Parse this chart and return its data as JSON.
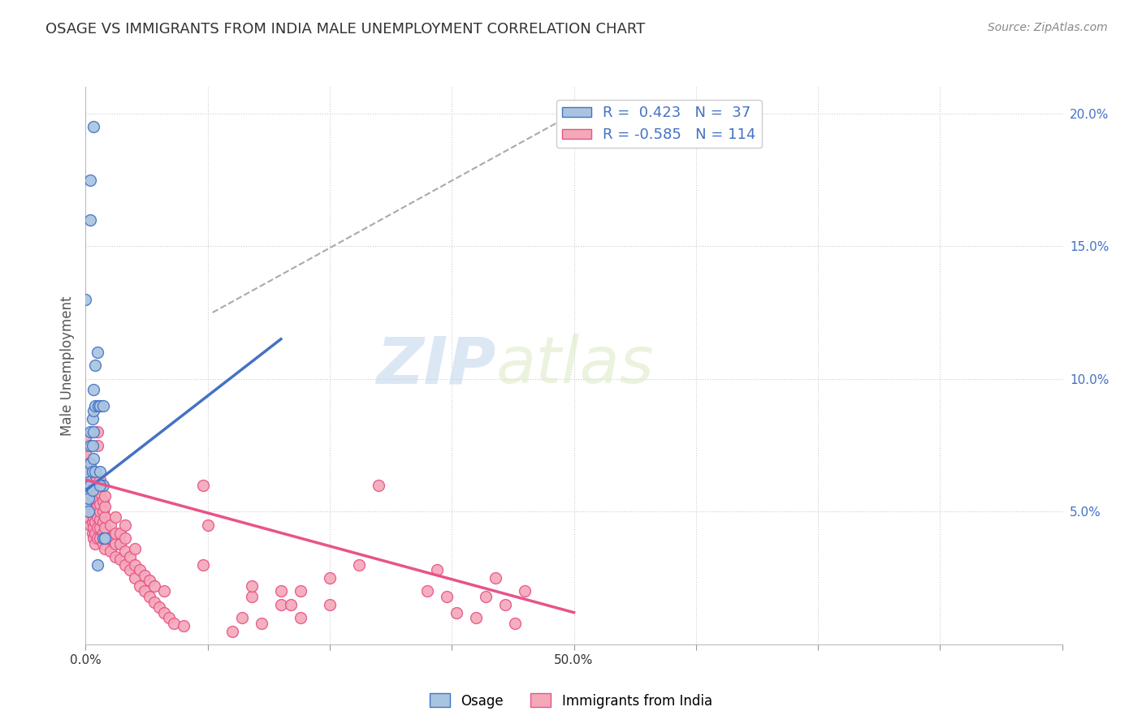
{
  "title": "OSAGE VS IMMIGRANTS FROM INDIA MALE UNEMPLOYMENT CORRELATION CHART",
  "source": "Source: ZipAtlas.com",
  "ylabel": "Male Unemployment",
  "right_yticks": [
    "20.0%",
    "15.0%",
    "10.0%",
    "5.0%"
  ],
  "right_ytick_vals": [
    0.2,
    0.15,
    0.1,
    0.05
  ],
  "osage_color": "#a8c4e0",
  "india_color": "#f4a8b8",
  "osage_line_color": "#4472c4",
  "india_line_color": "#e8538a",
  "trendline_dashed_color": "#aaaaaa",
  "background_color": "#ffffff",
  "watermark_zip": "ZIP",
  "watermark_atlas": "atlas",
  "xlim": [
    0.0,
    0.5
  ],
  "ylim": [
    0.0,
    0.21
  ],
  "xtick_vals": [
    0.0,
    0.0625,
    0.125,
    0.1875,
    0.25,
    0.3125,
    0.375,
    0.4375,
    0.5
  ],
  "xtick_labels_shown": {
    "0.0": "0.0%",
    "0.5": "50.0%"
  },
  "osage_scatter": [
    [
      0.0,
      0.053
    ],
    [
      0.0,
      0.057
    ],
    [
      0.0,
      0.06
    ],
    [
      0.0,
      0.062
    ],
    [
      0.0,
      0.065
    ],
    [
      0.003,
      0.05
    ],
    [
      0.003,
      0.055
    ],
    [
      0.003,
      0.06
    ],
    [
      0.005,
      0.06
    ],
    [
      0.005,
      0.068
    ],
    [
      0.005,
      0.075
    ],
    [
      0.005,
      0.08
    ],
    [
      0.007,
      0.058
    ],
    [
      0.007,
      0.065
    ],
    [
      0.007,
      0.075
    ],
    [
      0.007,
      0.085
    ],
    [
      0.008,
      0.07
    ],
    [
      0.008,
      0.08
    ],
    [
      0.008,
      0.088
    ],
    [
      0.008,
      0.096
    ],
    [
      0.01,
      0.065
    ],
    [
      0.01,
      0.09
    ],
    [
      0.01,
      0.105
    ],
    [
      0.012,
      0.03
    ],
    [
      0.013,
      0.09
    ],
    [
      0.015,
      0.065
    ],
    [
      0.015,
      0.09
    ],
    [
      0.018,
      0.06
    ],
    [
      0.018,
      0.09
    ],
    [
      0.0,
      0.13
    ],
    [
      0.005,
      0.16
    ],
    [
      0.008,
      0.195
    ],
    [
      0.005,
      0.175
    ],
    [
      0.012,
      0.11
    ],
    [
      0.015,
      0.06
    ],
    [
      0.018,
      0.04
    ],
    [
      0.02,
      0.04
    ]
  ],
  "india_scatter": [
    [
      0.0,
      0.05
    ],
    [
      0.0,
      0.055
    ],
    [
      0.0,
      0.06
    ],
    [
      0.0,
      0.062
    ],
    [
      0.0,
      0.065
    ],
    [
      0.0,
      0.068
    ],
    [
      0.0,
      0.07
    ],
    [
      0.0,
      0.072
    ],
    [
      0.0,
      0.075
    ],
    [
      0.0,
      0.078
    ],
    [
      0.003,
      0.048
    ],
    [
      0.003,
      0.052
    ],
    [
      0.003,
      0.055
    ],
    [
      0.003,
      0.058
    ],
    [
      0.003,
      0.06
    ],
    [
      0.003,
      0.062
    ],
    [
      0.003,
      0.065
    ],
    [
      0.003,
      0.068
    ],
    [
      0.005,
      0.045
    ],
    [
      0.005,
      0.05
    ],
    [
      0.005,
      0.053
    ],
    [
      0.005,
      0.055
    ],
    [
      0.005,
      0.058
    ],
    [
      0.005,
      0.06
    ],
    [
      0.005,
      0.063
    ],
    [
      0.007,
      0.042
    ],
    [
      0.007,
      0.046
    ],
    [
      0.007,
      0.05
    ],
    [
      0.007,
      0.053
    ],
    [
      0.007,
      0.056
    ],
    [
      0.007,
      0.06
    ],
    [
      0.008,
      0.04
    ],
    [
      0.008,
      0.044
    ],
    [
      0.008,
      0.048
    ],
    [
      0.008,
      0.051
    ],
    [
      0.008,
      0.055
    ],
    [
      0.008,
      0.058
    ],
    [
      0.008,
      0.062
    ],
    [
      0.01,
      0.038
    ],
    [
      0.01,
      0.042
    ],
    [
      0.01,
      0.046
    ],
    [
      0.01,
      0.05
    ],
    [
      0.01,
      0.053
    ],
    [
      0.01,
      0.057
    ],
    [
      0.012,
      0.04
    ],
    [
      0.012,
      0.044
    ],
    [
      0.012,
      0.048
    ],
    [
      0.012,
      0.052
    ],
    [
      0.012,
      0.055
    ],
    [
      0.012,
      0.06
    ],
    [
      0.012,
      0.075
    ],
    [
      0.012,
      0.08
    ],
    [
      0.015,
      0.04
    ],
    [
      0.015,
      0.044
    ],
    [
      0.015,
      0.047
    ],
    [
      0.015,
      0.05
    ],
    [
      0.015,
      0.053
    ],
    [
      0.015,
      0.057
    ],
    [
      0.015,
      0.062
    ],
    [
      0.018,
      0.038
    ],
    [
      0.018,
      0.042
    ],
    [
      0.018,
      0.046
    ],
    [
      0.018,
      0.05
    ],
    [
      0.018,
      0.054
    ],
    [
      0.02,
      0.036
    ],
    [
      0.02,
      0.04
    ],
    [
      0.02,
      0.044
    ],
    [
      0.02,
      0.048
    ],
    [
      0.02,
      0.052
    ],
    [
      0.02,
      0.056
    ],
    [
      0.025,
      0.035
    ],
    [
      0.025,
      0.04
    ],
    [
      0.025,
      0.045
    ],
    [
      0.03,
      0.033
    ],
    [
      0.03,
      0.038
    ],
    [
      0.03,
      0.042
    ],
    [
      0.03,
      0.048
    ],
    [
      0.035,
      0.032
    ],
    [
      0.035,
      0.038
    ],
    [
      0.035,
      0.042
    ],
    [
      0.04,
      0.03
    ],
    [
      0.04,
      0.035
    ],
    [
      0.04,
      0.04
    ],
    [
      0.04,
      0.045
    ],
    [
      0.045,
      0.028
    ],
    [
      0.045,
      0.033
    ],
    [
      0.05,
      0.025
    ],
    [
      0.05,
      0.03
    ],
    [
      0.05,
      0.036
    ],
    [
      0.055,
      0.022
    ],
    [
      0.055,
      0.028
    ],
    [
      0.06,
      0.02
    ],
    [
      0.06,
      0.026
    ],
    [
      0.065,
      0.018
    ],
    [
      0.065,
      0.024
    ],
    [
      0.07,
      0.016
    ],
    [
      0.07,
      0.022
    ],
    [
      0.075,
      0.014
    ],
    [
      0.08,
      0.012
    ],
    [
      0.08,
      0.02
    ],
    [
      0.085,
      0.01
    ],
    [
      0.09,
      0.008
    ],
    [
      0.1,
      0.007
    ],
    [
      0.12,
      0.03
    ],
    [
      0.12,
      0.06
    ],
    [
      0.125,
      0.045
    ],
    [
      0.15,
      0.005
    ],
    [
      0.16,
      0.01
    ],
    [
      0.17,
      0.018
    ],
    [
      0.17,
      0.022
    ],
    [
      0.18,
      0.008
    ],
    [
      0.2,
      0.015
    ],
    [
      0.2,
      0.02
    ],
    [
      0.21,
      0.015
    ],
    [
      0.22,
      0.01
    ],
    [
      0.22,
      0.02
    ],
    [
      0.25,
      0.015
    ],
    [
      0.25,
      0.025
    ],
    [
      0.28,
      0.03
    ],
    [
      0.3,
      0.06
    ],
    [
      0.35,
      0.02
    ],
    [
      0.36,
      0.028
    ],
    [
      0.37,
      0.018
    ],
    [
      0.38,
      0.012
    ],
    [
      0.4,
      0.01
    ],
    [
      0.41,
      0.018
    ],
    [
      0.42,
      0.025
    ],
    [
      0.43,
      0.015
    ],
    [
      0.44,
      0.008
    ],
    [
      0.45,
      0.02
    ]
  ],
  "osage_trendline": [
    [
      0.0,
      0.058
    ],
    [
      0.2,
      0.115
    ]
  ],
  "india_trendline": [
    [
      0.0,
      0.062
    ],
    [
      0.5,
      0.012
    ]
  ],
  "dashed_trendline": [
    [
      0.13,
      0.125
    ],
    [
      0.5,
      0.2
    ]
  ]
}
